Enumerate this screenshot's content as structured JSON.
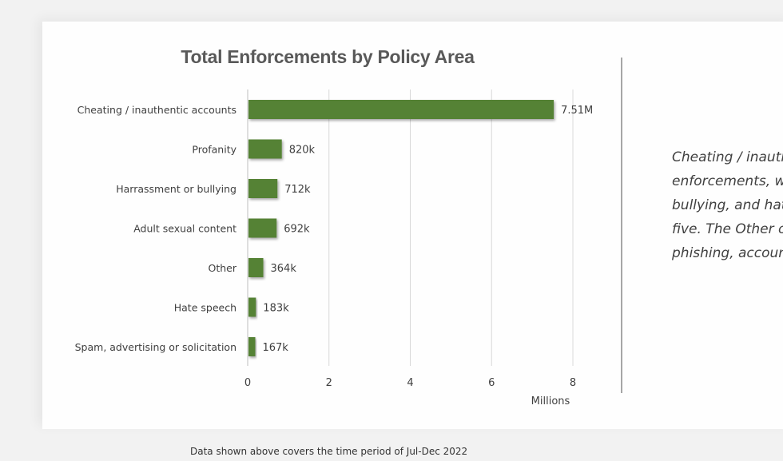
{
  "colors": {
    "bar": "#548235",
    "gridline": "#d9d9d9",
    "axis": "#d9d9d9",
    "label_text": "#404040",
    "title_text": "#595959"
  },
  "chart_data": {
    "type": "bar",
    "orientation": "horizontal",
    "title": "Total Enforcements by Policy Area",
    "categories": [
      "Cheating / inauthentic accounts",
      "Profanity",
      "Harrassment or bullying",
      "Adult sexual content",
      "Other",
      "Hate speech",
      "Spam, advertising or solicitation"
    ],
    "values": [
      7.51,
      0.82,
      0.712,
      0.692,
      0.364,
      0.183,
      0.167
    ],
    "data_labels": [
      "7.51M",
      "820k",
      "712k",
      "692k",
      "364k",
      "183k",
      "167k"
    ],
    "xlabel": "Millions",
    "ylabel": "",
    "xlim": [
      0,
      8
    ],
    "x_ticks": [
      "0",
      "2",
      "4",
      "6",
      "8"
    ],
    "x_tick_values": [
      0,
      2,
      4,
      6,
      8
    ],
    "grid": true,
    "legend": "none"
  },
  "summary": {
    "lines": [
      "Cheating / inauth",
      "enforcements, wi",
      "bullying, and hate",
      "five. The Other ca",
      "phishing, account"
    ]
  },
  "footnote": "Data shown above covers the time period of Jul-Dec 2022"
}
